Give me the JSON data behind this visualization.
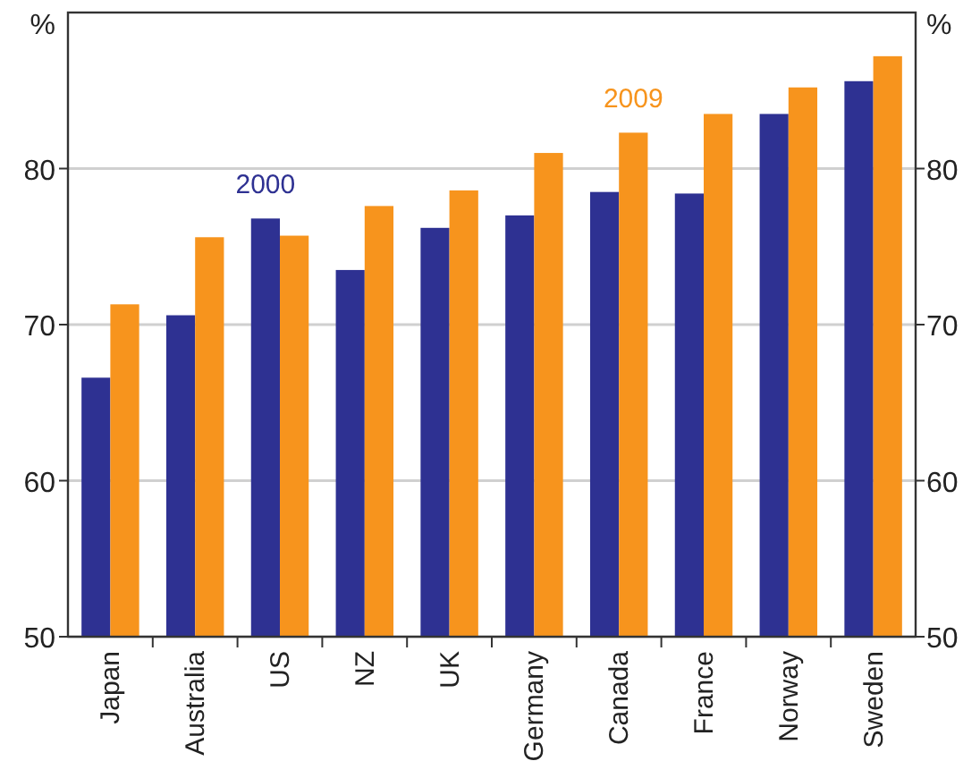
{
  "chart_data": {
    "type": "bar",
    "ylabel": "%",
    "y2label": "%",
    "categories": [
      "Japan",
      "Australia",
      "US",
      "NZ",
      "UK",
      "Germany",
      "Canada",
      "France",
      "Norway",
      "Sweden"
    ],
    "series": [
      {
        "name": "2000",
        "color": "#2e3192",
        "values": [
          66.6,
          70.6,
          76.8,
          73.5,
          76.2,
          77.0,
          78.5,
          78.4,
          83.5,
          85.6
        ]
      },
      {
        "name": "2009",
        "color": "#f7941d",
        "values": [
          71.3,
          75.6,
          75.7,
          77.6,
          78.6,
          81.0,
          82.3,
          83.5,
          85.2,
          87.2
        ]
      }
    ],
    "ylim": [
      50,
      90
    ],
    "yticks": [
      50,
      60,
      70,
      80
    ],
    "y2lim": [
      50,
      90
    ],
    "y2ticks": [
      50,
      60,
      70,
      80
    ],
    "grid": "y",
    "legend": false
  }
}
